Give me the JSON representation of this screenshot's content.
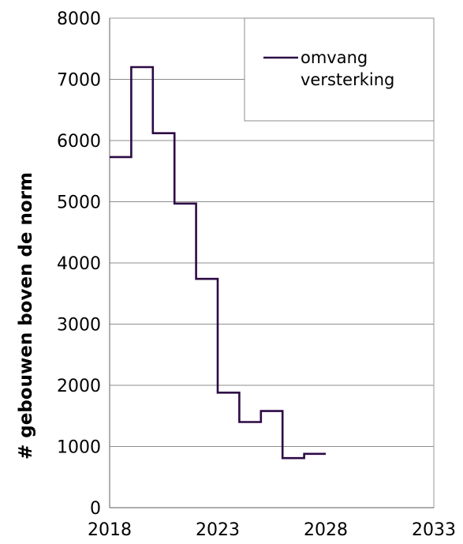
{
  "chart_data": {
    "type": "line",
    "step": true,
    "title": "",
    "xlabel": "",
    "ylabel": "# gebouwen boven de norm",
    "xlim": [
      2018,
      2033
    ],
    "ylim": [
      0,
      8000
    ],
    "xticks": [
      2018,
      2023,
      2028,
      2033
    ],
    "yticks": [
      0,
      1000,
      2000,
      3000,
      4000,
      5000,
      6000,
      7000,
      8000
    ],
    "grid": true,
    "legend": "top-right",
    "series": [
      {
        "name": "omvang versterking",
        "color": "#2d0a45",
        "x": [
          2018,
          2019,
          2020,
          2021,
          2022,
          2023,
          2024,
          2025,
          2026,
          2027,
          2028
        ],
        "y": [
          5730,
          7200,
          6120,
          4970,
          3740,
          1880,
          1400,
          1580,
          810,
          880,
          880
        ]
      }
    ]
  }
}
